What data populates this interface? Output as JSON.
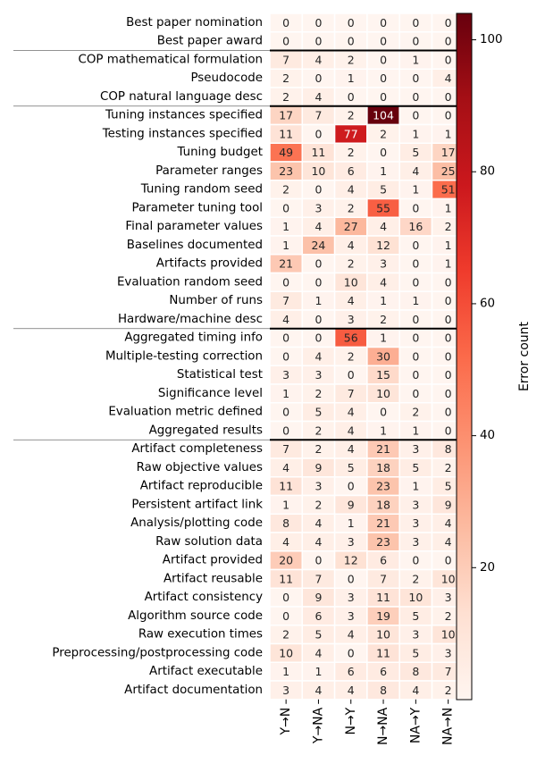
{
  "chart_data": {
    "type": "heatmap",
    "title": "",
    "xlabel": "",
    "ylabel": "",
    "columns": [
      "Y→N",
      "Y→NA",
      "N→Y",
      "N→NA",
      "NA→Y",
      "NA→N"
    ],
    "rows": [
      {
        "label": "Best paper nomination",
        "values": [
          0,
          0,
          0,
          0,
          0,
          0
        ]
      },
      {
        "label": "Best paper award",
        "values": [
          0,
          0,
          0,
          0,
          0,
          0
        ]
      },
      {
        "label": "COP mathematical formulation",
        "values": [
          7,
          4,
          2,
          0,
          1,
          0
        ]
      },
      {
        "label": "Pseudocode",
        "values": [
          2,
          0,
          1,
          0,
          0,
          4
        ]
      },
      {
        "label": "COP natural language desc",
        "values": [
          2,
          4,
          0,
          0,
          0,
          0
        ]
      },
      {
        "label": "Tuning instances specified",
        "values": [
          17,
          7,
          2,
          104,
          0,
          0
        ]
      },
      {
        "label": "Testing instances specified",
        "values": [
          11,
          0,
          77,
          2,
          1,
          1
        ]
      },
      {
        "label": "Tuning budget",
        "values": [
          49,
          11,
          2,
          0,
          5,
          17
        ]
      },
      {
        "label": "Parameter ranges",
        "values": [
          23,
          10,
          6,
          1,
          4,
          25
        ]
      },
      {
        "label": "Tuning random seed",
        "values": [
          2,
          0,
          4,
          5,
          1,
          51
        ]
      },
      {
        "label": "Parameter tuning tool",
        "values": [
          0,
          3,
          2,
          55,
          0,
          1
        ]
      },
      {
        "label": "Final parameter values",
        "values": [
          1,
          4,
          27,
          4,
          16,
          2
        ]
      },
      {
        "label": "Baselines documented",
        "values": [
          1,
          24,
          4,
          12,
          0,
          1
        ]
      },
      {
        "label": "Artifacts provided",
        "values": [
          21,
          0,
          2,
          3,
          0,
          1
        ]
      },
      {
        "label": "Evaluation random seed",
        "values": [
          0,
          0,
          10,
          4,
          0,
          0
        ]
      },
      {
        "label": "Number of runs",
        "values": [
          7,
          1,
          4,
          1,
          1,
          0
        ]
      },
      {
        "label": "Hardware/machine desc",
        "values": [
          4,
          0,
          3,
          2,
          0,
          0
        ]
      },
      {
        "label": "Aggregated timing info",
        "values": [
          0,
          0,
          56,
          1,
          0,
          0
        ]
      },
      {
        "label": "Multiple-testing correction",
        "values": [
          0,
          4,
          2,
          30,
          0,
          0
        ]
      },
      {
        "label": "Statistical test",
        "values": [
          3,
          3,
          0,
          15,
          0,
          0
        ]
      },
      {
        "label": "Significance level",
        "values": [
          1,
          2,
          7,
          10,
          0,
          0
        ]
      },
      {
        "label": "Evaluation metric defined",
        "values": [
          0,
          5,
          4,
          0,
          2,
          0
        ]
      },
      {
        "label": "Aggregated results",
        "values": [
          0,
          2,
          4,
          1,
          1,
          0
        ]
      },
      {
        "label": "Artifact completeness",
        "values": [
          7,
          2,
          4,
          21,
          3,
          8
        ]
      },
      {
        "label": "Raw objective values",
        "values": [
          4,
          9,
          5,
          18,
          5,
          2
        ]
      },
      {
        "label": "Artifact reproducible",
        "values": [
          11,
          3,
          0,
          23,
          1,
          5
        ]
      },
      {
        "label": "Persistent artifact link",
        "values": [
          1,
          2,
          9,
          18,
          3,
          9
        ]
      },
      {
        "label": "Analysis/plotting code",
        "values": [
          8,
          4,
          1,
          21,
          3,
          4
        ]
      },
      {
        "label": "Raw solution data",
        "values": [
          4,
          4,
          3,
          23,
          3,
          4
        ]
      },
      {
        "label": "Artifact provided",
        "values": [
          20,
          0,
          12,
          6,
          0,
          0
        ]
      },
      {
        "label": "Artifact reusable",
        "values": [
          11,
          7,
          0,
          7,
          2,
          10
        ]
      },
      {
        "label": "Artifact consistency",
        "values": [
          0,
          9,
          3,
          11,
          10,
          3
        ]
      },
      {
        "label": "Algorithm source code",
        "values": [
          0,
          6,
          3,
          19,
          5,
          2
        ]
      },
      {
        "label": "Raw execution times",
        "values": [
          2,
          5,
          4,
          10,
          3,
          10
        ]
      },
      {
        "label": "Preprocessing/postprocessing code",
        "values": [
          10,
          4,
          0,
          11,
          5,
          3
        ]
      },
      {
        "label": "Artifact executable",
        "values": [
          1,
          1,
          6,
          6,
          8,
          7
        ]
      },
      {
        "label": "Artifact documentation",
        "values": [
          3,
          4,
          4,
          8,
          4,
          2
        ]
      }
    ],
    "group_separators_after_row": [
      1,
      4,
      16,
      22
    ],
    "colorbar": {
      "label": "Error count",
      "range": [
        0,
        104
      ],
      "ticks": [
        20,
        40,
        60,
        80,
        100
      ],
      "colormap": "Reds"
    }
  }
}
